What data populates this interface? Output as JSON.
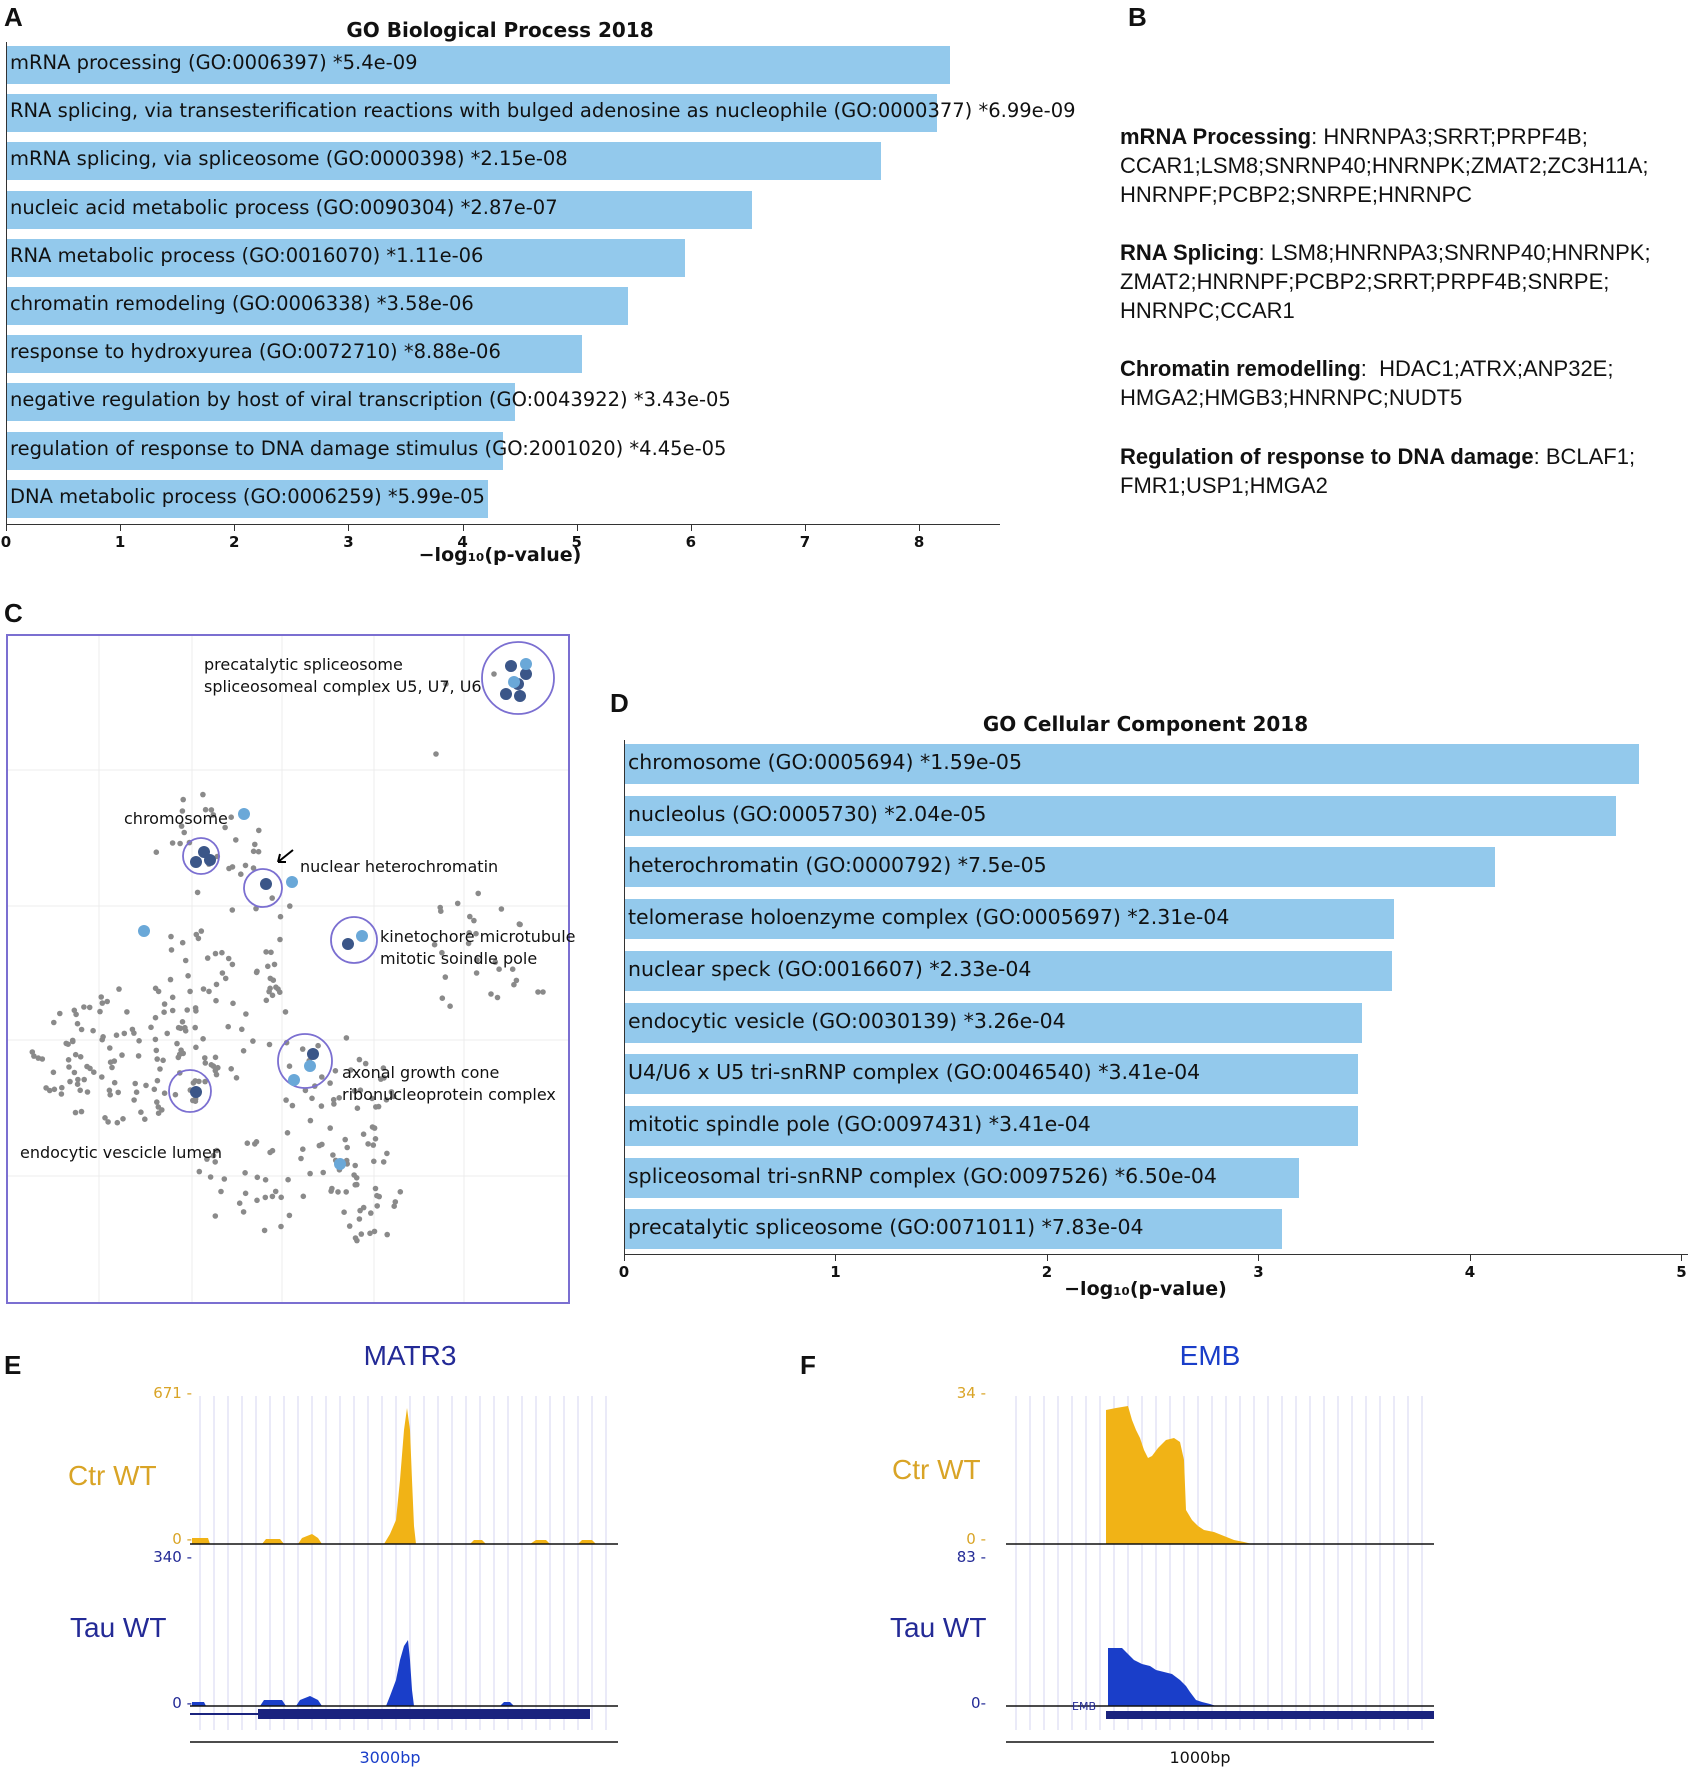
{
  "panels": {
    "a": "A",
    "b": "B",
    "c": "C",
    "d": "D",
    "e": "E",
    "f": "F"
  },
  "colors": {
    "bar": "#93c9ec",
    "ctr": "#f1b316",
    "tau": "#1a3ec9",
    "ctr_label": "#d9a426",
    "tau_label": "#232a96",
    "circle": "#7b6fd1",
    "point_grey": "#8a8a8a",
    "point_dark": "#3b5688",
    "point_light": "#6aa8d8"
  },
  "chart_data": [
    {
      "type": "bar",
      "orientation": "horizontal",
      "title": "GO Biological Process 2018",
      "xlabel": "−log₁₀(p-value)",
      "xlim": [
        0,
        8.7
      ],
      "xticks": [
        "0",
        "1",
        "2",
        "3",
        "4",
        "5",
        "6",
        "7",
        "8"
      ],
      "categories": [
        "mRNA processing (GO:0006397)  *5.4e-09",
        "RNA splicing, via transesterification reactions with bulged adenosine as nucleophile (GO:0000377)  *6.99e-09",
        "mRNA splicing, via spliceosome (GO:0000398)  *2.15e-08",
        "nucleic acid metabolic process (GO:0090304)  *2.87e-07",
        "RNA metabolic process (GO:0016070)  *1.11e-06",
        "chromatin remodeling (GO:0006338)  *3.58e-06",
        "response to hydroxyurea (GO:0072710)  *8.88e-06",
        "negative regulation by host of viral transcription (GO:0043922)  *3.43e-05",
        "regulation of response to DNA damage stimulus (GO:2001020)  *4.45e-05",
        "DNA metabolic process (GO:0006259)  *5.99e-05"
      ],
      "values": [
        8.27,
        8.16,
        7.67,
        6.54,
        5.95,
        5.45,
        5.05,
        4.46,
        4.35,
        4.22
      ]
    },
    {
      "type": "bar",
      "orientation": "horizontal",
      "title": "GO Cellular Component 2018",
      "xlabel": "−log₁₀(p-value)",
      "xlim": [
        0,
        5.05
      ],
      "xticks": [
        "0",
        "1",
        "2",
        "3",
        "4",
        "5"
      ],
      "categories": [
        "chromosome (GO:0005694)  *1.59e-05",
        "nucleolus (GO:0005730)  *2.04e-05",
        "heterochromatin (GO:0000792)  *7.5e-05",
        "telomerase holoenzyme complex (GO:0005697)  *2.31e-04",
        "nuclear speck (GO:0016607)  *2.33e-04",
        "endocytic vesicle (GO:0030139)  *3.26e-04",
        "U4/U6 x U5 tri-snRNP complex (GO:0046540)  *3.41e-04",
        "mitotic spindle pole (GO:0097431)  *3.41e-04",
        "spliceosomal tri-snRNP complex (GO:0097526)  *6.50e-04",
        "precatalytic spliceosome (GO:0071011)  *7.83e-04"
      ],
      "values": [
        4.8,
        4.69,
        4.12,
        3.64,
        3.63,
        3.49,
        3.47,
        3.47,
        3.19,
        3.11
      ]
    },
    {
      "type": "scatter",
      "title": "",
      "annotations": [
        "precatalytic spliceosome",
        "spliceosomeal complex U5, U7, U6",
        "chromosome",
        "nuclear heterochromatin",
        "kinetochore microtubule",
        "mitotic soindle pole",
        "axonal growth cone",
        "ribonucleoprotein complex",
        "endocytic vescicle lumen"
      ]
    },
    {
      "type": "area",
      "title": "MATR3",
      "tracks": [
        {
          "name": "Ctr WT",
          "max": "671 -",
          "min": "0 -"
        },
        {
          "name": "Tau WT",
          "max": "340 -",
          "min": "0 -"
        }
      ],
      "scale": "3000bp"
    },
    {
      "type": "area",
      "title": "EMB",
      "gene_label": "EMB",
      "tracks": [
        {
          "name": "Ctr WT",
          "max": "34 -",
          "min": "0 -"
        },
        {
          "name": "Tau WT",
          "max": "83 -",
          "min": "0-"
        }
      ],
      "scale": "1000bp"
    }
  ],
  "gene_lists": [
    {
      "term": "mRNA Processing",
      "sep": ": ",
      "lines": [
        "HNRNPA3;SRRT;PRPF4B;",
        "CCAR1;LSM8;SNRNP40;HNRNPK;ZMAT2;ZC3H11A;",
        "HNRNPF;PCBP2;SNRPE;HNRNPC"
      ]
    },
    {
      "term": "RNA Splicing",
      "sep": ": ",
      "lines": [
        "LSM8;HNRNPA3;SNRNP40;HNRNPK;",
        "ZMAT2;HNRNPF;PCBP2;SRRT;PRPF4B;SNRPE;",
        "HNRNPC;CCAR1"
      ]
    },
    {
      "term": "Chromatin remodelling",
      "sep": ":  ",
      "lines": [
        "HDAC1;ATRX;ANP32E;",
        "HMGA2;HMGB3;HNRNPC;NUDT5"
      ]
    },
    {
      "term": "Regulation of response to DNA damage",
      "sep": ": ",
      "lines": [
        "BCLAF1;",
        "FMR1;USP1;HMGA2"
      ]
    }
  ]
}
